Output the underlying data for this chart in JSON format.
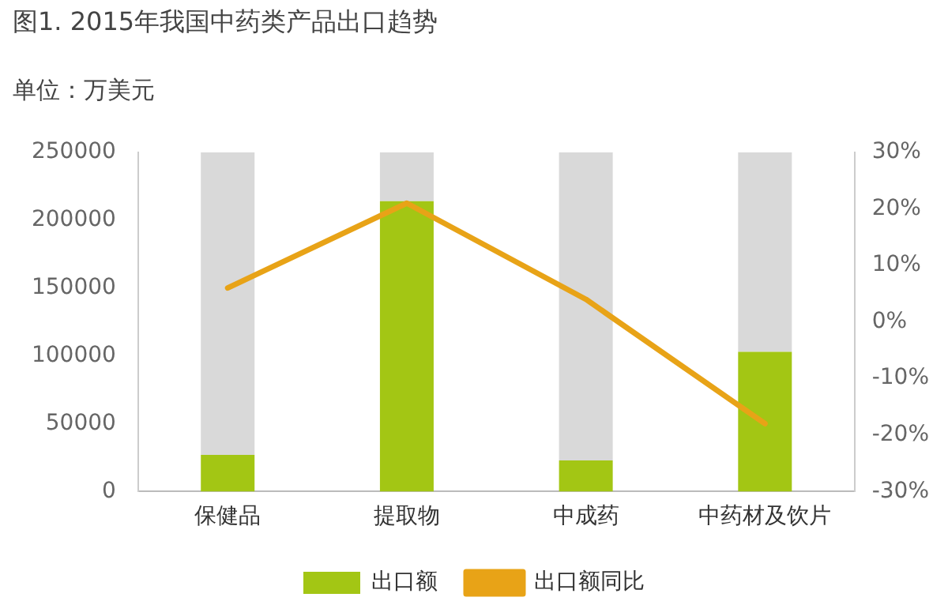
{
  "chart_data": {
    "type": "bar",
    "title": "图1. 2015年我国中药类产品出口趋势",
    "ylabel": "单位：万美元",
    "categories": [
      "保健品",
      "提取物",
      "中成药",
      "中药材及饮片"
    ],
    "series": [
      {
        "name": "出口额",
        "color": "#a3c614",
        "values": [
          27000,
          214000,
          23000,
          103000
        ]
      },
      {
        "color": "#d9d9d9",
        "values": [
          223000,
          36000,
          227000,
          147000
        ]
      },
      {
        "name": "出口额同比",
        "type": "line",
        "axis": "y2",
        "color": "#e8a317",
        "values": [
          6,
          21,
          4,
          -18
        ]
      }
    ],
    "ylim": [
      0,
      250000
    ],
    "yticks": [
      0,
      50000,
      100000,
      150000,
      200000,
      250000
    ],
    "y2lim": [
      -30,
      30
    ],
    "y2ticks": [
      {
        "value": -30,
        "label": "-30%"
      },
      {
        "value": -20,
        "label": "-20%"
      },
      {
        "value": -10,
        "label": "-10%"
      },
      {
        "value": 0,
        "label": "0%"
      },
      {
        "value": 10,
        "label": "10%"
      },
      {
        "value": 20,
        "label": "20%"
      },
      {
        "value": 30,
        "label": "30%"
      }
    ],
    "stacked": true,
    "grid": false,
    "legend": "bottom",
    "marker": "none"
  }
}
